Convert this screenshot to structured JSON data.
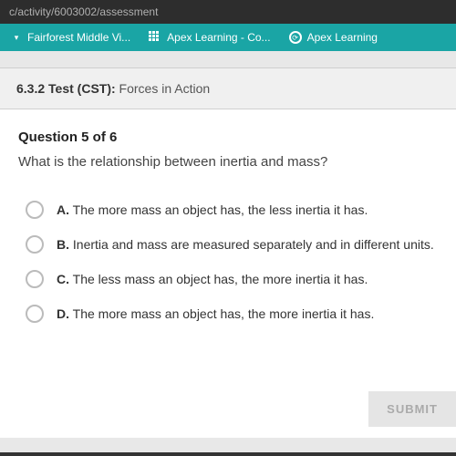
{
  "browser": {
    "url": "c/activity/6003002/assessment"
  },
  "bookmarks": [
    {
      "label": "Fairforest Middle Vi...",
      "icon": "chevron"
    },
    {
      "label": "Apex Learning - Co...",
      "icon": "grid"
    },
    {
      "label": "Apex Learning",
      "icon": "circle"
    }
  ],
  "test": {
    "number": "6.3.2",
    "type_label": "Test (CST):",
    "title": "Forces in Action"
  },
  "question": {
    "num_label": "Question 5 of 6",
    "text": "What is the relationship between inertia and mass?",
    "options": [
      {
        "letter": "A.",
        "text": "The more mass an object has, the less inertia it has."
      },
      {
        "letter": "B.",
        "text": "Inertia and mass are measured separately and in different units."
      },
      {
        "letter": "C.",
        "text": "The less mass an object has, the more inertia it has."
      },
      {
        "letter": "D.",
        "text": "The more mass an object has, the more inertia it has."
      }
    ]
  },
  "submit_label": "SUBMIT",
  "colors": {
    "teal": "#1aa5a5",
    "browser_bg": "#2d2d2d",
    "card_bg": "#ffffff",
    "page_bg": "#e8e8e8"
  }
}
